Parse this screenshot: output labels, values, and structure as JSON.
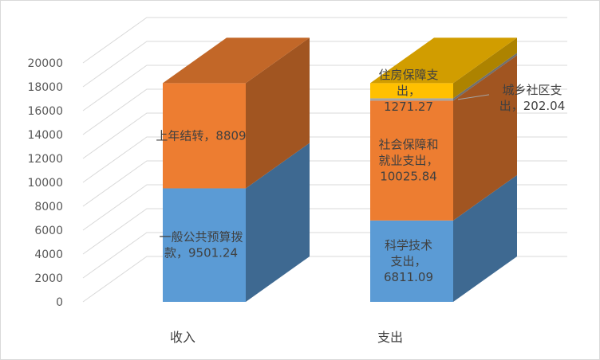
{
  "chart_data": {
    "type": "bar",
    "stacked": true,
    "three_d": true,
    "title": "",
    "xlabel": "",
    "ylabel": "",
    "ylim": [
      0,
      20000
    ],
    "yticks": [
      0,
      2000,
      4000,
      6000,
      8000,
      10000,
      12000,
      14000,
      16000,
      18000,
      20000
    ],
    "grid": true,
    "legend": "none",
    "categories": [
      "收入",
      "支出"
    ],
    "stacks": [
      {
        "category": "收入",
        "segments": [
          {
            "name": "一般公共预算拨款",
            "value": 9501.24,
            "label_lines": [
              "一般公共预算拨",
              "款，9501.24"
            ],
            "color": "#5b9bd5"
          },
          {
            "name": "上年结转",
            "value": 8809,
            "label_lines": [
              "上年结转，8809"
            ],
            "color": "#ed7d31"
          }
        ]
      },
      {
        "category": "支出",
        "segments": [
          {
            "name": "科学技术支出",
            "value": 6811.09,
            "label_lines": [
              "科学技术",
              "支出，",
              "6811.09"
            ],
            "color": "#5b9bd5"
          },
          {
            "name": "社会保障和就业支出",
            "value": 10025.84,
            "label_lines": [
              "社会保障和",
              "就业支出，",
              "10025.84"
            ],
            "color": "#ed7d31"
          },
          {
            "name": "城乡社区支出",
            "value": 202.04,
            "label_lines": [
              "城乡社区支",
              "出，202.04"
            ],
            "color": "#a5a5a5"
          },
          {
            "name": "住房保障支出",
            "value": 1271.27,
            "label_lines": [
              "住房保障支",
              "出，",
              "1271.27"
            ],
            "color": "#ffc000"
          }
        ]
      }
    ]
  }
}
